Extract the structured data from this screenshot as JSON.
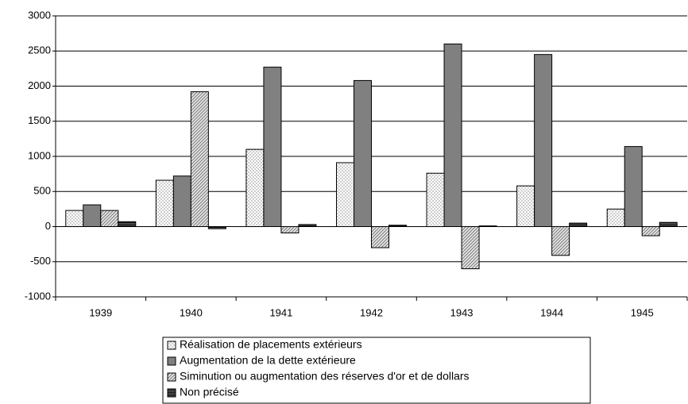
{
  "chart_data": {
    "type": "bar",
    "categories": [
      "1939",
      "1940",
      "1941",
      "1942",
      "1943",
      "1944",
      "1945"
    ],
    "series": [
      {
        "name": "Réalisation de placements extérieurs",
        "color": "#ffffff",
        "values": [
          230,
          660,
          1100,
          910,
          760,
          580,
          250
        ]
      },
      {
        "name": "Augmentation de la dette extérieure",
        "color": "#808080",
        "values": [
          310,
          720,
          2270,
          2080,
          2600,
          2450,
          1140
        ]
      },
      {
        "name": "Siminution ou augmentation des réserves d'or et de dollars",
        "color": "#e8e8e8",
        "values": [
          230,
          1920,
          -90,
          -300,
          -600,
          -410,
          -130
        ]
      },
      {
        "name": "Non précisé",
        "color": "#606060",
        "values": [
          70,
          -30,
          30,
          20,
          10,
          50,
          60
        ]
      }
    ],
    "ylim": [
      -1000,
      3000
    ],
    "yticks": [
      -1000,
      -500,
      0,
      500,
      1000,
      1500,
      2000,
      2500,
      3000
    ],
    "grid": true
  }
}
